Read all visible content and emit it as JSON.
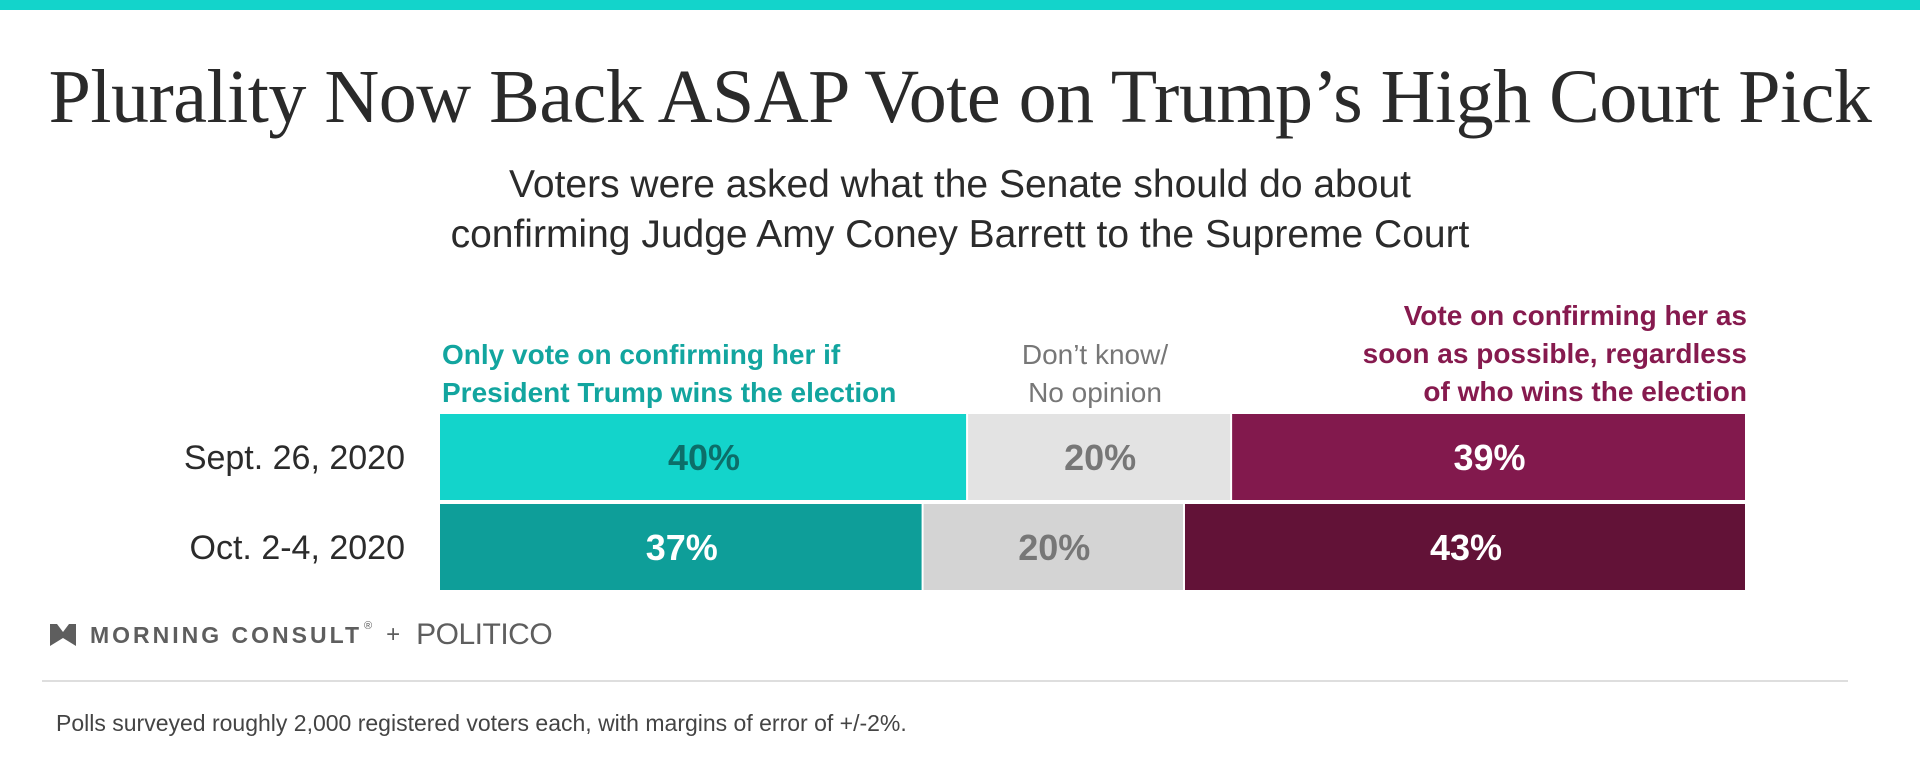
{
  "title": "Plurality Now Back ASAP Vote on Trump’s High Court Pick",
  "subtitle": [
    "Voters were asked what the Senate should do about",
    "confirming Judge Amy Coney Barrett to the Supreme Court"
  ],
  "legend": {
    "left": [
      "Only vote on confirming her if",
      "President Trump wins the election"
    ],
    "middle": [
      "Don’t know/",
      "No opinion"
    ],
    "right": [
      "Vote on confirming her as",
      "soon as possible, regardless",
      "of who wins the election"
    ]
  },
  "colors": {
    "accent_bar": "#13d4cb",
    "teal_light": "#13d4cb",
    "teal_dark": "#0e9e99",
    "gray_light": "#e3e3e3",
    "gray_dark": "#d4d4d4",
    "maroon_light": "#82194d",
    "maroon_dark": "#621237"
  },
  "chart_data": {
    "type": "bar",
    "orientation": "horizontal-stacked-100",
    "categories": [
      "Sept. 26, 2020",
      "Oct. 2-4, 2020"
    ],
    "series": [
      {
        "name": "Only vote on confirming her if President Trump wins the election",
        "values": [
          40,
          37
        ],
        "labels": [
          "40%",
          "37%"
        ],
        "colors": [
          "#13d4cb",
          "#0e9e99"
        ],
        "label_colors": [
          "#0c6e69",
          "#ffffff"
        ]
      },
      {
        "name": "Don’t know/ No opinion",
        "values": [
          20,
          20
        ],
        "labels": [
          "20%",
          "20%"
        ],
        "colors": [
          "#e3e3e3",
          "#d4d4d4"
        ],
        "label_colors": [
          "#777777",
          "#777777"
        ]
      },
      {
        "name": "Vote on confirming her as soon as possible, regardless of who wins the election",
        "values": [
          39,
          43
        ],
        "labels": [
          "39%",
          "43%"
        ],
        "colors": [
          "#82194d",
          "#621237"
        ],
        "label_colors": [
          "#ffffff",
          "#ffffff"
        ]
      }
    ],
    "xlim": [
      0,
      100
    ],
    "grid": false,
    "legend_placement": "top"
  },
  "logos": {
    "morning_consult": "MORNING CONSULT",
    "registered_mark": "®",
    "plus": "+",
    "politico": "POLITICO",
    "icon": "morning-consult-chevron-icon"
  },
  "footnote": "Polls surveyed roughly 2,000 registered voters each, with margins of error of +/-2%."
}
